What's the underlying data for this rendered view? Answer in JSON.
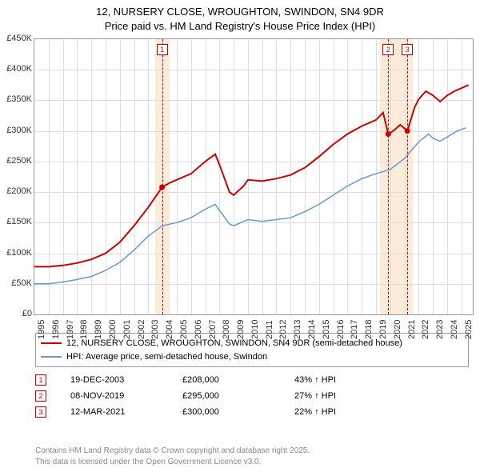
{
  "title_line1": "12, NURSERY CLOSE, WROUGHTON, SWINDON, SN4 9DR",
  "title_line2": "Price paid vs. HM Land Registry's House Price Index (HPI)",
  "chart": {
    "xlim": [
      1995,
      2025.8
    ],
    "ylim": [
      0,
      450
    ],
    "ytick_step": 50,
    "y_ticks": [
      "£0",
      "£50K",
      "£100K",
      "£150K",
      "£200K",
      "£250K",
      "£300K",
      "£350K",
      "£400K",
      "£450K"
    ],
    "x_ticks": [
      "1995",
      "1996",
      "1997",
      "1998",
      "1999",
      "2000",
      "2001",
      "2002",
      "2003",
      "2004",
      "2005",
      "2006",
      "2007",
      "2008",
      "2009",
      "2010",
      "2011",
      "2012",
      "2013",
      "2014",
      "2015",
      "2016",
      "2017",
      "2018",
      "2019",
      "2020",
      "2021",
      "2022",
      "2023",
      "2024",
      "2025"
    ],
    "grid_color": "#dddddd",
    "background_color": "#ffffff",
    "highlight_color": "#fbecd9",
    "highlight_ranges": [
      [
        2003.5,
        2004.5
      ],
      [
        2019.3,
        2021.6
      ]
    ],
    "series": {
      "property": {
        "color": "#cc0000",
        "width": 2,
        "label": "12, NURSERY CLOSE, WROUGHTON, SWINDON, SN4 9DR (semi-detached house)",
        "points": [
          [
            1995,
            78
          ],
          [
            1996,
            78
          ],
          [
            1997,
            80
          ],
          [
            1998,
            84
          ],
          [
            1999,
            90
          ],
          [
            2000,
            100
          ],
          [
            2001,
            118
          ],
          [
            2002,
            145
          ],
          [
            2003,
            175
          ],
          [
            2003.97,
            208
          ],
          [
            2004.5,
            215
          ],
          [
            2005,
            220
          ],
          [
            2006,
            230
          ],
          [
            2007,
            250
          ],
          [
            2007.7,
            262
          ],
          [
            2008,
            245
          ],
          [
            2008.7,
            200
          ],
          [
            2009,
            195
          ],
          [
            2009.7,
            210
          ],
          [
            2010,
            220
          ],
          [
            2011,
            218
          ],
          [
            2012,
            222
          ],
          [
            2013,
            228
          ],
          [
            2014,
            240
          ],
          [
            2015,
            258
          ],
          [
            2016,
            278
          ],
          [
            2017,
            295
          ],
          [
            2018,
            308
          ],
          [
            2019,
            318
          ],
          [
            2019.5,
            330
          ],
          [
            2019.86,
            295
          ],
          [
            2020.2,
            300
          ],
          [
            2020.7,
            310
          ],
          [
            2021.2,
            300
          ],
          [
            2021.7,
            338
          ],
          [
            2022,
            352
          ],
          [
            2022.5,
            365
          ],
          [
            2023,
            358
          ],
          [
            2023.5,
            348
          ],
          [
            2024,
            358
          ],
          [
            2024.5,
            365
          ],
          [
            2025,
            370
          ],
          [
            2025.5,
            375
          ]
        ]
      },
      "hpi": {
        "color": "#6699cc",
        "width": 1.5,
        "label": "HPI: Average price, semi-detached house, Swindon",
        "points": [
          [
            1995,
            50
          ],
          [
            1996,
            50
          ],
          [
            1997,
            53
          ],
          [
            1998,
            57
          ],
          [
            1999,
            62
          ],
          [
            2000,
            72
          ],
          [
            2001,
            85
          ],
          [
            2002,
            105
          ],
          [
            2003,
            128
          ],
          [
            2004,
            145
          ],
          [
            2005,
            150
          ],
          [
            2006,
            158
          ],
          [
            2007,
            172
          ],
          [
            2007.7,
            180
          ],
          [
            2008,
            170
          ],
          [
            2008.7,
            148
          ],
          [
            2009,
            145
          ],
          [
            2010,
            155
          ],
          [
            2011,
            152
          ],
          [
            2012,
            155
          ],
          [
            2013,
            158
          ],
          [
            2014,
            168
          ],
          [
            2015,
            180
          ],
          [
            2016,
            195
          ],
          [
            2017,
            210
          ],
          [
            2018,
            222
          ],
          [
            2019,
            230
          ],
          [
            2020,
            237
          ],
          [
            2021,
            255
          ],
          [
            2022,
            282
          ],
          [
            2022.7,
            295
          ],
          [
            2023,
            288
          ],
          [
            2023.5,
            283
          ],
          [
            2024,
            290
          ],
          [
            2024.7,
            300
          ],
          [
            2025.3,
            305
          ]
        ]
      }
    },
    "sale_markers": [
      {
        "n": "1",
        "x": 2003.97,
        "y": 208
      },
      {
        "n": "2",
        "x": 2019.86,
        "y": 295
      },
      {
        "n": "3",
        "x": 2021.2,
        "y": 300
      }
    ]
  },
  "sales": [
    {
      "n": "1",
      "date": "19-DEC-2003",
      "price": "£208,000",
      "delta": "43% ↑ HPI"
    },
    {
      "n": "2",
      "date": "08-NOV-2019",
      "price": "£295,000",
      "delta": "27% ↑ HPI"
    },
    {
      "n": "3",
      "date": "12-MAR-2021",
      "price": "£300,000",
      "delta": "22% ↑ HPI"
    }
  ],
  "blurb1": "Contains HM Land Registry data © Crown copyright and database right 2025.",
  "blurb2": "This data is licensed under the Open Government Licence v3.0."
}
